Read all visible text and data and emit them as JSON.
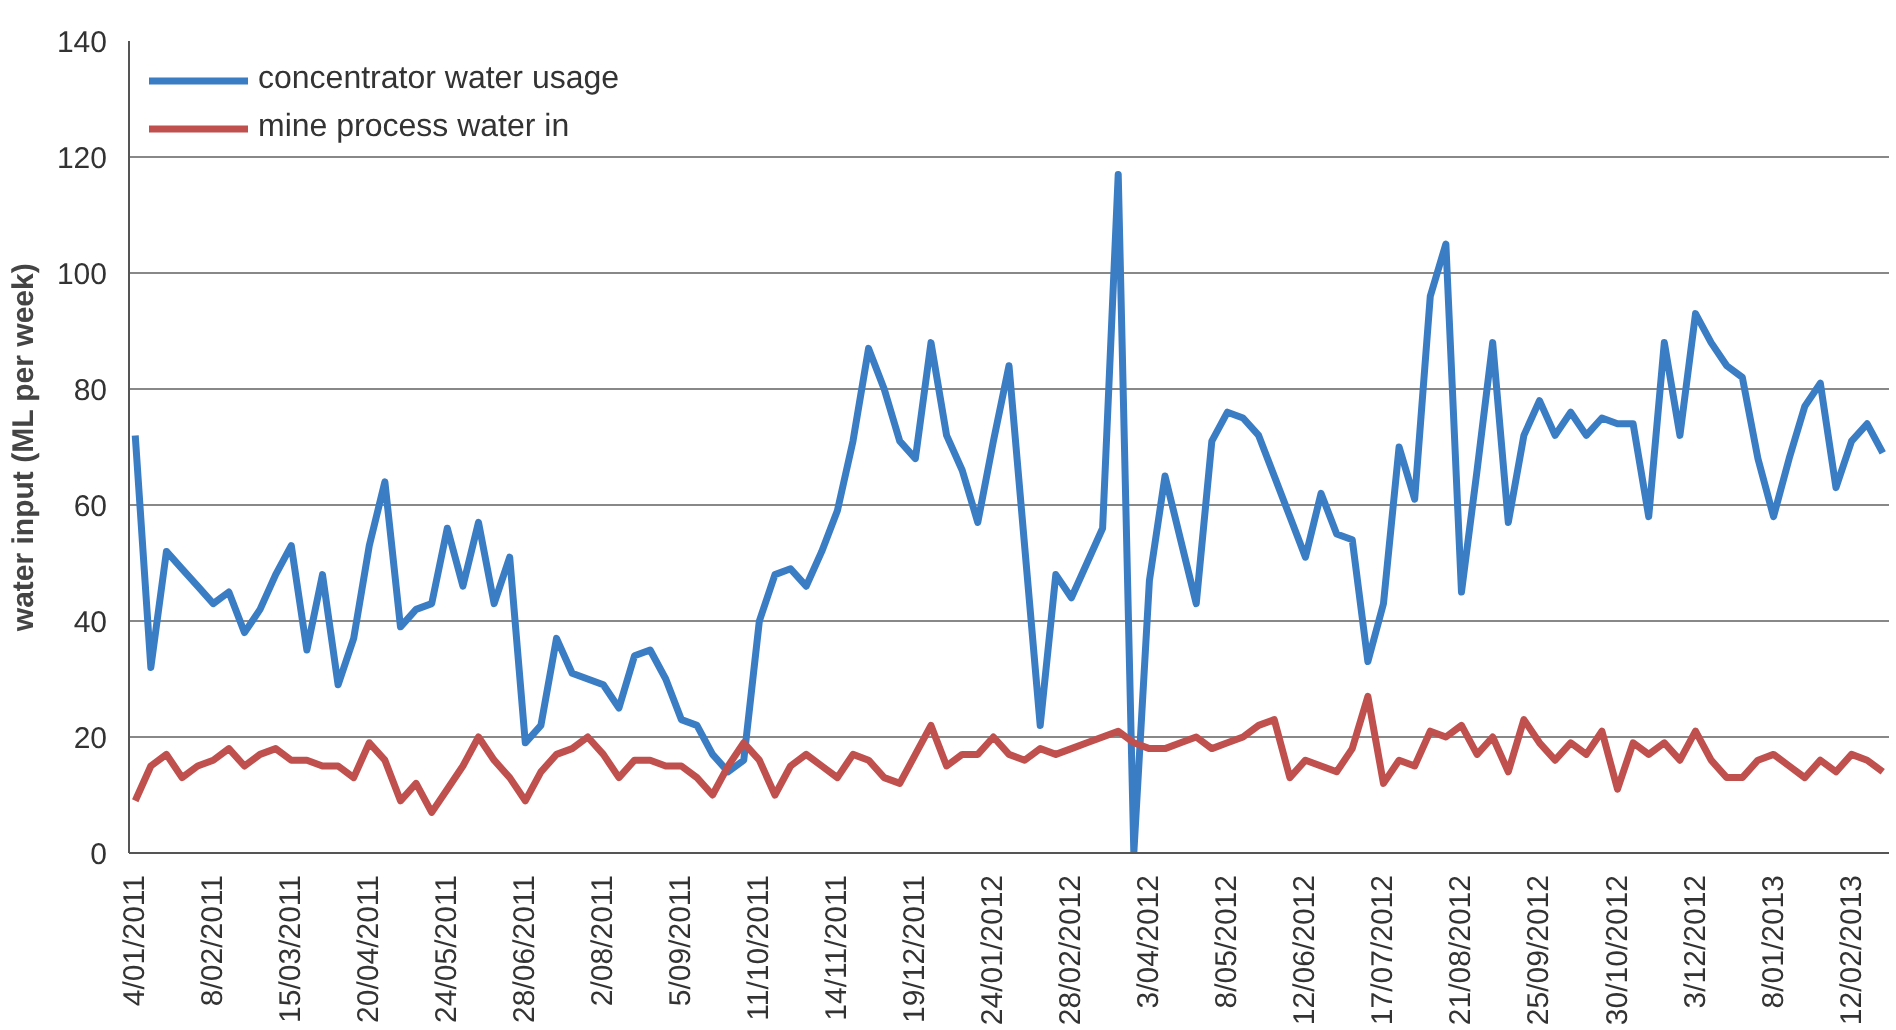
{
  "chart_data": {
    "type": "line",
    "ylabel": "water input (ML per week)",
    "categories": [
      "4/01/2011",
      null,
      null,
      null,
      null,
      "8/02/2011",
      null,
      null,
      null,
      null,
      "15/03/2011",
      null,
      null,
      null,
      null,
      "20/04/2011",
      null,
      null,
      null,
      null,
      "24/05/2011",
      null,
      null,
      null,
      null,
      "28/06/2011",
      null,
      null,
      null,
      null,
      "2/08/2011",
      null,
      null,
      null,
      null,
      "5/09/2011",
      null,
      null,
      null,
      null,
      "11/10/2011",
      null,
      null,
      null,
      null,
      "14/11/2011",
      null,
      null,
      null,
      null,
      "19/12/2011",
      null,
      null,
      null,
      null,
      "24/01/2012",
      null,
      null,
      null,
      null,
      "28/02/2012",
      null,
      null,
      null,
      null,
      "3/04/2012",
      null,
      null,
      null,
      null,
      "8/05/2012",
      null,
      null,
      null,
      null,
      "12/06/2012",
      null,
      null,
      null,
      null,
      "17/07/2012",
      null,
      null,
      null,
      null,
      "21/08/2012",
      null,
      null,
      null,
      null,
      "25/09/2012",
      null,
      null,
      null,
      null,
      "30/10/2012",
      null,
      null,
      null,
      null,
      "3/12/2012",
      null,
      null,
      null,
      null,
      "8/01/2013",
      null,
      null,
      null,
      null,
      "12/02/2013",
      null,
      null
    ],
    "series": [
      {
        "name": "concentrator water usage",
        "color": "#3b7dc4",
        "values": [
          72,
          32,
          52,
          49,
          46,
          43,
          45,
          38,
          42,
          48,
          53,
          35,
          48,
          29,
          37,
          53,
          64,
          39,
          42,
          43,
          56,
          46,
          57,
          43,
          51,
          19,
          22,
          37,
          31,
          30,
          29,
          25,
          34,
          35,
          30,
          23,
          22,
          17,
          14,
          16,
          40,
          48,
          49,
          46,
          52,
          59,
          71,
          87,
          80,
          71,
          68,
          88,
          72,
          66,
          57,
          71,
          84,
          53,
          22,
          48,
          44,
          50,
          56,
          117,
          0,
          47,
          65,
          54,
          43,
          71,
          76,
          75,
          72,
          65,
          58,
          51,
          62,
          55,
          54,
          33,
          43,
          70,
          61,
          96,
          105,
          45,
          66,
          88,
          57,
          72,
          78,
          72,
          76,
          72,
          75,
          74,
          74,
          58,
          88,
          72,
          93,
          88,
          84,
          82,
          68,
          58,
          68,
          77,
          81,
          63,
          71,
          74,
          69
        ]
      },
      {
        "name": "mine process water in",
        "color": "#c0504d",
        "values": [
          9,
          15,
          17,
          13,
          15,
          16,
          18,
          15,
          17,
          18,
          16,
          16,
          15,
          15,
          13,
          19,
          16,
          9,
          12,
          7,
          11,
          15,
          20,
          16,
          13,
          9,
          14,
          17,
          18,
          20,
          17,
          13,
          16,
          16,
          15,
          15,
          13,
          10,
          15,
          19,
          16,
          10,
          15,
          17,
          15,
          13,
          17,
          16,
          13,
          12,
          17,
          22,
          15,
          17,
          17,
          20,
          17,
          16,
          18,
          17,
          18,
          19,
          20,
          21,
          19,
          18,
          18,
          19,
          20,
          18,
          19,
          20,
          22,
          23,
          13,
          16,
          15,
          14,
          18,
          27,
          12,
          16,
          15,
          21,
          20,
          22,
          17,
          20,
          14,
          23,
          19,
          16,
          19,
          17,
          21,
          11,
          19,
          17,
          19,
          16,
          21,
          16,
          13,
          13,
          16,
          17,
          15,
          13,
          16,
          14,
          17,
          16,
          14
        ]
      }
    ],
    "ylim": [
      0,
      140
    ],
    "yticks": [
      0,
      20,
      40,
      60,
      80,
      100,
      120,
      140
    ],
    "grid": "y",
    "legend": "top left",
    "marker": "none",
    "line_style": "solid"
  }
}
